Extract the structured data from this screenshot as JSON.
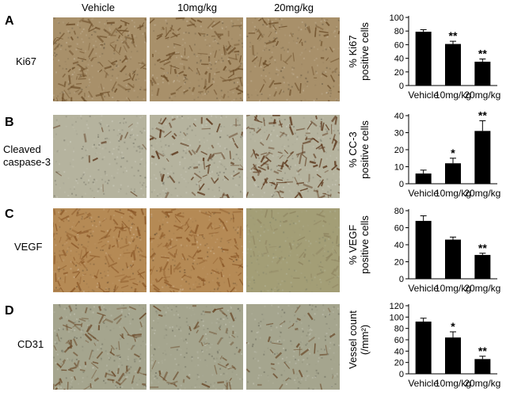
{
  "columns": [
    "Vehicle",
    "10mg/kg",
    "20mg/kg"
  ],
  "rows": [
    {
      "letter": "A",
      "label_lines": [
        "Ki67"
      ],
      "base": "#a8906a",
      "stain": "#6e4f2a",
      "density": 0.55,
      "seed": 11
    },
    {
      "letter": "B",
      "label_lines": [
        "Cleaved",
        "caspase-3"
      ],
      "base": "#b5b39e",
      "stain": "#5a3418",
      "density": 0.25,
      "seed": 27
    },
    {
      "letter": "C",
      "label_lines": [
        "VEGF"
      ],
      "base": "#b58a55",
      "stain": "#8d5a2a",
      "density": 0.6,
      "seed": 43
    },
    {
      "letter": "D",
      "label_lines": [
        "CD31"
      ],
      "base": "#a5a58e",
      "stain": "#6b4a2a",
      "density": 0.2,
      "seed": 59
    }
  ],
  "colors": {
    "bar": "#000000",
    "text": "#000000"
  },
  "chart_data": [
    {
      "type": "bar",
      "categories": [
        "Vehicle",
        "10mg/kg",
        "20mg/kg"
      ],
      "values": [
        79,
        61,
        35
      ],
      "errors": [
        3,
        4,
        4
      ],
      "significance": [
        "",
        "**",
        "**"
      ],
      "ylabel_lines": [
        "% Ki67",
        "positive cells"
      ],
      "ylim": [
        0,
        100
      ],
      "yticks": [
        0,
        20,
        40,
        60,
        80,
        100
      ]
    },
    {
      "type": "bar",
      "categories": [
        "Vehicle",
        "10mg/kg",
        "20mg/kg"
      ],
      "values": [
        6,
        12,
        31
      ],
      "errors": [
        2,
        3,
        6
      ],
      "significance": [
        "",
        "*",
        "**"
      ],
      "ylabel_lines": [
        "% CC-3",
        "positive cells"
      ],
      "ylim": [
        0,
        40
      ],
      "yticks": [
        0,
        10,
        20,
        30,
        40
      ]
    },
    {
      "type": "bar",
      "categories": [
        "Vehicle",
        "10mg/kg",
        "20mg/kg"
      ],
      "values": [
        68,
        46,
        28
      ],
      "errors": [
        6,
        3,
        2
      ],
      "significance": [
        "",
        "",
        "**"
      ],
      "ylabel_lines": [
        "% VEGF",
        "positive cells"
      ],
      "ylim": [
        0,
        80
      ],
      "yticks": [
        0,
        20,
        40,
        60,
        80
      ]
    },
    {
      "type": "bar",
      "categories": [
        "Vehicle",
        "10mg/kg",
        "20mg/kg"
      ],
      "values": [
        92,
        64,
        26
      ],
      "errors": [
        6,
        10,
        5
      ],
      "significance": [
        "",
        "*",
        "**"
      ],
      "ylabel_lines": [
        "Vessel count",
        "(/mm²)"
      ],
      "ylim": [
        0,
        120
      ],
      "yticks": [
        0,
        20,
        40,
        60,
        80,
        100,
        120
      ]
    }
  ]
}
